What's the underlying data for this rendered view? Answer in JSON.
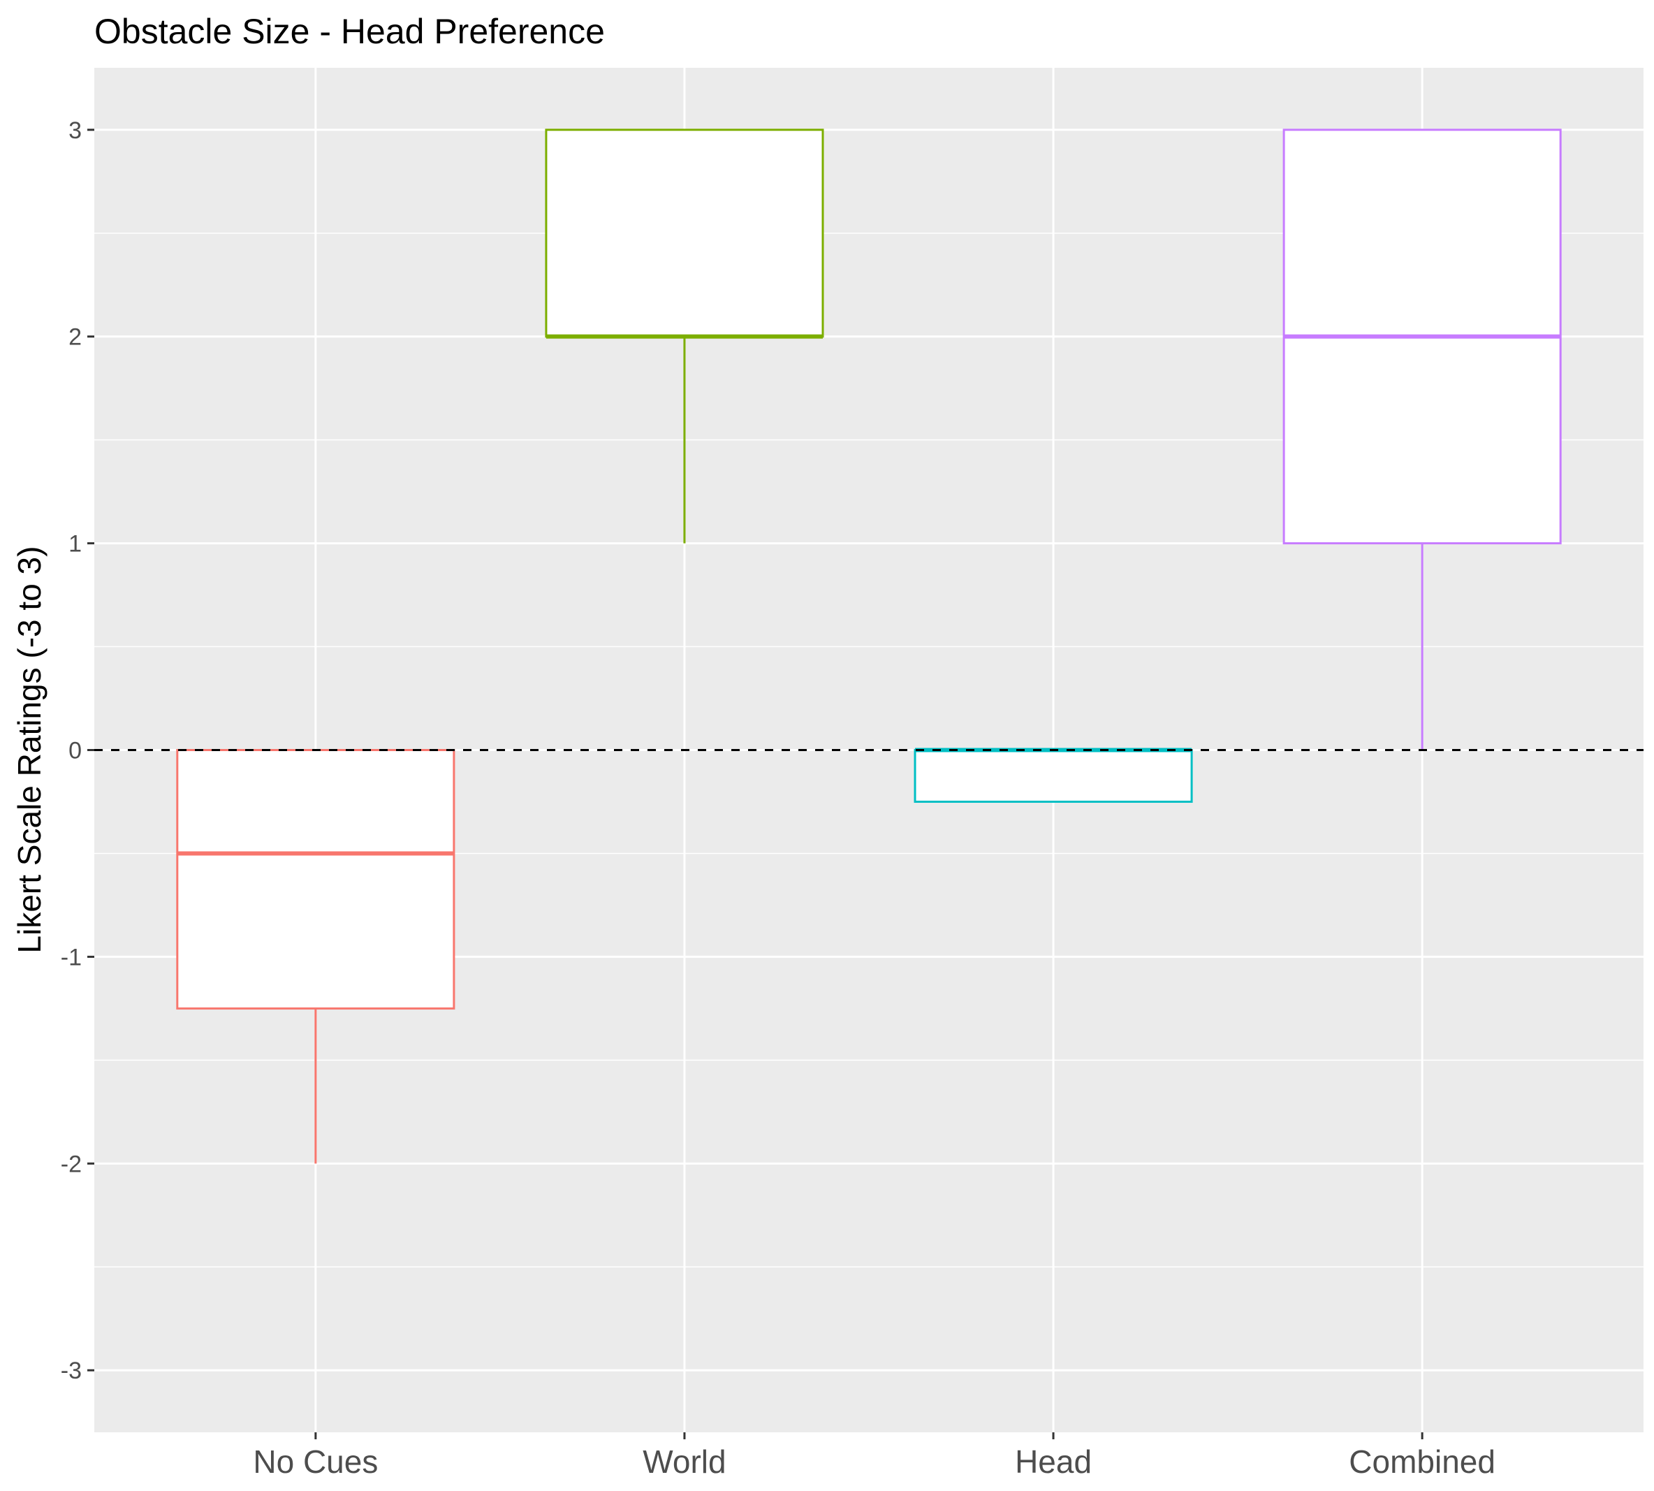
{
  "chart_data": {
    "type": "boxplot",
    "title": "Obstacle Size - Head Preference",
    "xlabel": "",
    "ylabel": "Likert Scale Ratings (-3 to 3)",
    "ylim": [
      -3.3,
      3.3
    ],
    "yticks": [
      "-3",
      "-2",
      "-1",
      "0",
      "1",
      "2",
      "3"
    ],
    "reference_line": {
      "y": 0,
      "style": "dashed",
      "color": "#000000"
    },
    "grid": true,
    "legend": "none",
    "panel_background": "#ebebeb",
    "categories": [
      "No Cues",
      "World",
      "Head",
      "Combined"
    ],
    "boxes": [
      {
        "name": "No Cues",
        "color": "#f8766d",
        "whisker_low": -2,
        "q1": -1.25,
        "median": -0.5,
        "q3": 0,
        "whisker_high": 0
      },
      {
        "name": "World",
        "color": "#7cae00",
        "whisker_low": 1,
        "q1": 2,
        "median": 2,
        "q3": 3,
        "whisker_high": 3
      },
      {
        "name": "Head",
        "color": "#00bfc4",
        "whisker_low": -0.25,
        "q1": -0.25,
        "median": 0,
        "q3": 0,
        "whisker_high": 0
      },
      {
        "name": "Combined",
        "color": "#c77cff",
        "whisker_low": 0,
        "q1": 1,
        "median": 2,
        "q3": 3,
        "whisker_high": 3
      }
    ]
  }
}
